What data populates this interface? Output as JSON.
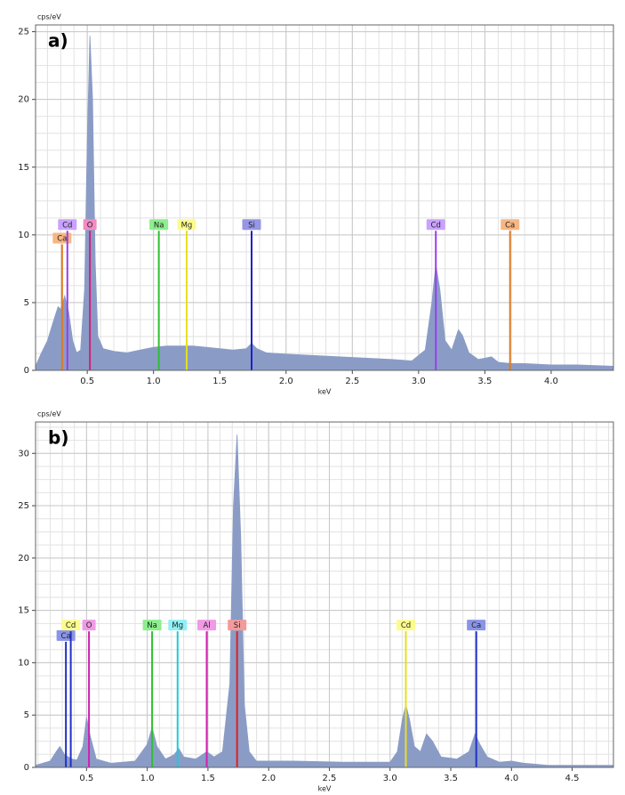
{
  "chart_data": [
    {
      "type": "spectrum",
      "panel": "a)",
      "ylabel": "cps/eV",
      "xlabel": "keV",
      "color": "#8a9cc6",
      "grid": true,
      "xlim": [
        0.11,
        4.47
      ],
      "ylim": [
        0,
        25.5
      ],
      "xticks": [
        0.5,
        {
          "value": 1,
          "label": "1.0"
        },
        1.5,
        {
          "value": 2,
          "label": "2.0"
        },
        2.5,
        {
          "value": 3,
          "label": "3.0"
        },
        3.5,
        {
          "value": 4,
          "label": "4.0"
        }
      ],
      "yticks": [
        0,
        5,
        10,
        15,
        20,
        25
      ],
      "x": [
        0.11,
        0.15,
        0.2,
        0.25,
        0.28,
        0.3,
        0.33,
        0.36,
        0.39,
        0.42,
        0.45,
        0.48,
        0.5,
        0.52,
        0.54,
        0.56,
        0.58,
        0.62,
        0.7,
        0.8,
        0.9,
        1.0,
        1.1,
        1.2,
        1.3,
        1.4,
        1.5,
        1.6,
        1.7,
        1.74,
        1.78,
        1.85,
        2.0,
        2.2,
        2.4,
        2.6,
        2.8,
        2.95,
        3.05,
        3.1,
        3.13,
        3.16,
        3.2,
        3.25,
        3.3,
        3.33,
        3.38,
        3.45,
        3.55,
        3.6,
        3.7,
        3.8,
        4.0,
        4.2,
        4.47
      ],
      "values": [
        0.3,
        1.2,
        2.2,
        3.8,
        4.7,
        4.5,
        5.5,
        4.3,
        2.2,
        1.3,
        1.5,
        6,
        17,
        24.7,
        20,
        8,
        2.5,
        1.6,
        1.4,
        1.3,
        1.5,
        1.7,
        1.8,
        1.8,
        1.8,
        1.7,
        1.6,
        1.5,
        1.6,
        2.0,
        1.6,
        1.3,
        1.2,
        1.1,
        1.0,
        0.9,
        0.8,
        0.7,
        1.5,
        5,
        7.8,
        6,
        2.2,
        1.5,
        3.0,
        2.6,
        1.3,
        0.8,
        1.0,
        0.6,
        0.5,
        0.5,
        0.4,
        0.4,
        0.3
      ],
      "markers": [
        {
          "label": "Ca",
          "x": 0.31,
          "value": 9.3,
          "color": "#e07a20",
          "label_color": "#f7b682"
        },
        {
          "label": "Cd",
          "x": 0.35,
          "value": 10.3,
          "color": "#9a3cf0",
          "label_color": "#c9a2ff"
        },
        {
          "label": "O",
          "x": 0.52,
          "value": 10.3,
          "color": "#d0207f",
          "label_color": "#f28ac4"
        },
        {
          "label": "Na",
          "x": 1.04,
          "value": 10.3,
          "color": "#2ec02e",
          "label_color": "#8cee8c"
        },
        {
          "label": "Mg",
          "x": 1.25,
          "value": 10.3,
          "color": "#e6e020",
          "label_color": "#fcfc8e"
        },
        {
          "label": "Si",
          "x": 1.74,
          "value": 10.3,
          "color": "#2020c8",
          "label_color": "#9696e6"
        },
        {
          "label": "Cd",
          "x": 3.13,
          "value": 10.3,
          "color": "#9a3cf0",
          "label_color": "#c9a2ff"
        },
        {
          "label": "Ca",
          "x": 3.69,
          "value": 10.3,
          "color": "#e07a20",
          "label_color": "#f7b682"
        }
      ]
    },
    {
      "type": "spectrum",
      "panel": "b)",
      "ylabel": "cps/eV",
      "xlabel": "keV",
      "color": "#8a9cc6",
      "grid": true,
      "xlim": [
        0.08,
        4.84
      ],
      "ylim": [
        0,
        33
      ],
      "xticks": [
        0.5,
        {
          "value": 1,
          "label": "1.0"
        },
        1.5,
        {
          "value": 2,
          "label": "2.0"
        },
        2.5,
        {
          "value": 3,
          "label": "3.0"
        },
        3.5,
        {
          "value": 4,
          "label": "4.0"
        },
        4.5
      ],
      "yticks": [
        0,
        5,
        10,
        15,
        20,
        25,
        30
      ],
      "x": [
        0.08,
        0.2,
        0.25,
        0.28,
        0.32,
        0.38,
        0.42,
        0.47,
        0.5,
        0.53,
        0.58,
        0.7,
        0.9,
        1.0,
        1.04,
        1.08,
        1.15,
        1.22,
        1.26,
        1.3,
        1.4,
        1.49,
        1.55,
        1.62,
        1.68,
        1.71,
        1.74,
        1.77,
        1.8,
        1.84,
        1.9,
        2.2,
        2.6,
        3.0,
        3.06,
        3.1,
        3.13,
        3.16,
        3.2,
        3.25,
        3.3,
        3.35,
        3.42,
        3.55,
        3.65,
        3.7,
        3.74,
        3.8,
        3.9,
        4.0,
        4.1,
        4.3,
        4.84
      ],
      "values": [
        0.2,
        0.6,
        1.5,
        2.0,
        1.2,
        0.8,
        0.7,
        2.0,
        4.8,
        3.0,
        0.8,
        0.4,
        0.6,
        2.2,
        3.8,
        2.0,
        0.8,
        1.2,
        1.8,
        1.0,
        0.8,
        1.5,
        1.0,
        1.5,
        8,
        25,
        31.8,
        22,
        6,
        1.5,
        0.6,
        0.6,
        0.5,
        0.5,
        1.5,
        4.5,
        6,
        4.6,
        2,
        1.5,
        3.2,
        2.5,
        1.0,
        0.8,
        1.5,
        3.2,
        2.2,
        1.0,
        0.5,
        0.6,
        0.4,
        0.2,
        0.2
      ],
      "markers": [
        {
          "label": "Ca",
          "x": 0.33,
          "value": 12,
          "color": "#2030c8",
          "label_color": "#8a94e6"
        },
        {
          "label": "Cd",
          "x": 0.37,
          "value": 13,
          "color": "#2030c8",
          "label_color": "#fcfc8e"
        },
        {
          "label": "O",
          "x": 0.52,
          "value": 13,
          "color": "#d020b0",
          "label_color": "#f09ae6"
        },
        {
          "label": "Na",
          "x": 1.04,
          "value": 13,
          "color": "#2ec02e",
          "label_color": "#8cee8c"
        },
        {
          "label": "Mg",
          "x": 1.25,
          "value": 13,
          "color": "#20c8d8",
          "label_color": "#90f0f6"
        },
        {
          "label": "Al",
          "x": 1.49,
          "value": 13,
          "color": "#d020b0",
          "label_color": "#f09ae6"
        },
        {
          "label": "Si",
          "x": 1.74,
          "value": 13,
          "color": "#e02020",
          "label_color": "#f49a9a"
        },
        {
          "label": "Cd",
          "x": 3.13,
          "value": 13,
          "color": "#e6e020",
          "label_color": "#fcfc8e"
        },
        {
          "label": "Ca",
          "x": 3.71,
          "value": 13,
          "color": "#2030c8",
          "label_color": "#8a94e6"
        }
      ]
    }
  ]
}
